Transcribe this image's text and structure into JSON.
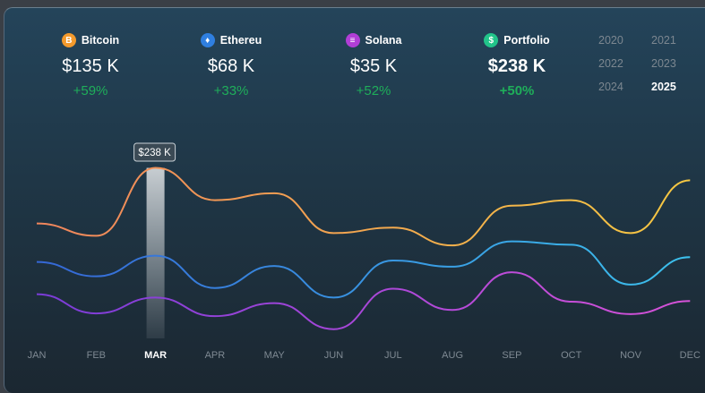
{
  "coins": [
    {
      "name": "Bitcoin",
      "value": "$135 K",
      "change": "+59%",
      "icon": "bitcoin-icon",
      "color": "#f39a2c",
      "glyph": "B"
    },
    {
      "name": "Ethereu",
      "value": "$68 K",
      "change": "+33%",
      "icon": "ethereum-icon",
      "color": "#2f7fe0",
      "glyph": "♦"
    },
    {
      "name": "Solana",
      "value": "$35 K",
      "change": "+52%",
      "icon": "solana-icon",
      "color": "#b13ed6",
      "glyph": "≡"
    },
    {
      "name": "Portfolio",
      "value": "$238 K",
      "change": "+50%",
      "icon": "dollar-icon",
      "color": "#22c48a",
      "glyph": "$"
    }
  ],
  "years": [
    "2020",
    "2021",
    "2022",
    "2023",
    "2024",
    "2025"
  ],
  "selected_year": "2025",
  "tooltip": "$238 K",
  "chart_data": {
    "type": "line",
    "categories": [
      "JAN",
      "FEB",
      "MAR",
      "APR",
      "MAY",
      "JUN",
      "JUL",
      "AUG",
      "SEP",
      "OCT",
      "NOV",
      "DEC"
    ],
    "highlight": "MAR",
    "ylim": [
      0,
      240
    ],
    "grid": false,
    "series": [
      {
        "values": [
          157,
          139,
          238,
          191,
          201,
          143,
          151,
          125,
          183,
          191,
          143,
          220
        ],
        "colors": [
          "#f0855c",
          "#f5c842"
        ]
      },
      {
        "values": [
          101,
          80,
          110,
          63,
          95,
          49,
          103,
          94,
          131,
          126,
          68,
          108
        ],
        "colors": [
          "#3567d6",
          "#3cc0ec"
        ]
      },
      {
        "values": [
          54,
          26,
          49,
          22,
          41,
          3,
          62,
          31,
          86,
          43,
          25,
          44
        ],
        "colors": [
          "#7a3cd8",
          "#d652d8"
        ]
      }
    ]
  }
}
